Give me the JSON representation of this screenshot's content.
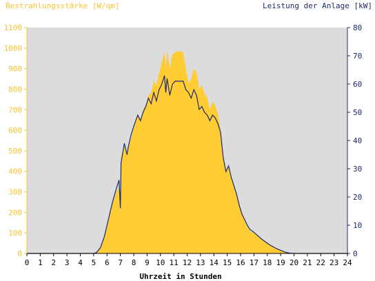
{
  "chart_data": {
    "type": "area",
    "title_left": "Bestrahlungsstärke [W/qm]",
    "title_right": "Leistung der Anlage [kW]",
    "xlabel": "Uhrzeit in Stunden",
    "x_ticks": [
      "0",
      "1",
      "2",
      "3",
      "4",
      "5",
      "6",
      "7",
      "8",
      "9",
      "10",
      "11",
      "12",
      "13",
      "14",
      "15",
      "16",
      "17",
      "18",
      "19",
      "20",
      "21",
      "22",
      "23",
      "24"
    ],
    "y_left_ticks": [
      "0",
      "100",
      "200",
      "300",
      "400",
      "500",
      "600",
      "700",
      "800",
      "900",
      "1000",
      "1100"
    ],
    "y_right_ticks": [
      "0",
      "10",
      "20",
      "30",
      "40",
      "50",
      "60",
      "70",
      "80"
    ],
    "xlim": [
      0,
      24
    ],
    "ylim_left": [
      0,
      1100
    ],
    "ylim_right": [
      0,
      80
    ],
    "grid": false,
    "colors": {
      "plot_bg": "#dcdcdc",
      "irradiance_fill": "#ffcc33",
      "power_line": "#1a2a6c",
      "left_axis_text": "#f5c431",
      "right_axis_text": "#1f2a6b"
    },
    "series": [
      {
        "name": "Bestrahlungsstärke",
        "axis": "left",
        "points": [
          [
            0,
            0
          ],
          [
            5,
            0
          ],
          [
            5.2,
            5
          ],
          [
            5.5,
            30
          ],
          [
            5.8,
            80
          ],
          [
            6.1,
            160
          ],
          [
            6.4,
            240
          ],
          [
            6.7,
            300
          ],
          [
            6.9,
            320
          ],
          [
            7.0,
            200
          ],
          [
            7.05,
            470
          ],
          [
            7.3,
            520
          ],
          [
            7.5,
            480
          ],
          [
            7.6,
            520
          ],
          [
            7.8,
            560
          ],
          [
            8.0,
            610
          ],
          [
            8.3,
            680
          ],
          [
            8.5,
            650
          ],
          [
            8.7,
            700
          ],
          [
            8.9,
            720
          ],
          [
            9.1,
            770
          ],
          [
            9.3,
            780
          ],
          [
            9.5,
            840
          ],
          [
            9.7,
            820
          ],
          [
            9.9,
            880
          ],
          [
            10.1,
            930
          ],
          [
            10.3,
            980
          ],
          [
            10.4,
            900
          ],
          [
            10.5,
            990
          ],
          [
            10.7,
            900
          ],
          [
            10.9,
            970
          ],
          [
            11.1,
            980
          ],
          [
            11.4,
            985
          ],
          [
            11.7,
            980
          ],
          [
            11.9,
            900
          ],
          [
            12.1,
            830
          ],
          [
            12.3,
            850
          ],
          [
            12.5,
            900
          ],
          [
            12.7,
            880
          ],
          [
            12.9,
            800
          ],
          [
            13.1,
            820
          ],
          [
            13.3,
            780
          ],
          [
            13.5,
            760
          ],
          [
            13.7,
            700
          ],
          [
            13.9,
            740
          ],
          [
            14.1,
            720
          ],
          [
            14.3,
            680
          ],
          [
            14.5,
            600
          ],
          [
            14.7,
            480
          ],
          [
            14.9,
            400
          ],
          [
            15.1,
            430
          ],
          [
            15.3,
            380
          ],
          [
            15.5,
            330
          ],
          [
            15.7,
            280
          ],
          [
            15.9,
            240
          ],
          [
            16.1,
            200
          ],
          [
            16.3,
            160
          ],
          [
            16.5,
            130
          ],
          [
            16.7,
            110
          ],
          [
            17.0,
            100
          ],
          [
            17.3,
            85
          ],
          [
            17.6,
            70
          ],
          [
            17.9,
            55
          ],
          [
            18.2,
            40
          ],
          [
            18.5,
            30
          ],
          [
            18.8,
            20
          ],
          [
            19.1,
            12
          ],
          [
            19.4,
            6
          ],
          [
            19.7,
            2
          ],
          [
            20,
            0
          ],
          [
            24,
            0
          ]
        ]
      },
      {
        "name": "Leistung",
        "axis": "right",
        "points": [
          [
            0,
            0
          ],
          [
            5,
            0
          ],
          [
            5.2,
            0.3
          ],
          [
            5.5,
            2
          ],
          [
            5.8,
            6
          ],
          [
            6.1,
            12
          ],
          [
            6.4,
            18
          ],
          [
            6.7,
            23
          ],
          [
            6.9,
            26
          ],
          [
            7.0,
            16
          ],
          [
            7.05,
            32
          ],
          [
            7.3,
            39
          ],
          [
            7.5,
            35
          ],
          [
            7.6,
            38
          ],
          [
            7.8,
            42
          ],
          [
            8.0,
            45
          ],
          [
            8.3,
            49
          ],
          [
            8.5,
            47
          ],
          [
            8.7,
            50
          ],
          [
            8.9,
            52
          ],
          [
            9.1,
            55
          ],
          [
            9.3,
            53
          ],
          [
            9.5,
            57
          ],
          [
            9.7,
            54
          ],
          [
            9.9,
            58
          ],
          [
            10.1,
            60
          ],
          [
            10.3,
            63
          ],
          [
            10.4,
            57
          ],
          [
            10.5,
            62
          ],
          [
            10.7,
            56
          ],
          [
            10.9,
            60
          ],
          [
            11.1,
            61
          ],
          [
            11.4,
            61
          ],
          [
            11.7,
            61
          ],
          [
            11.9,
            58
          ],
          [
            12.1,
            57
          ],
          [
            12.3,
            55
          ],
          [
            12.5,
            58
          ],
          [
            12.7,
            56
          ],
          [
            12.9,
            51
          ],
          [
            13.1,
            52
          ],
          [
            13.3,
            50
          ],
          [
            13.5,
            49
          ],
          [
            13.7,
            47
          ],
          [
            13.9,
            49
          ],
          [
            14.1,
            48
          ],
          [
            14.3,
            46
          ],
          [
            14.5,
            43
          ],
          [
            14.7,
            34
          ],
          [
            14.9,
            29
          ],
          [
            15.1,
            31
          ],
          [
            15.3,
            27
          ],
          [
            15.5,
            24
          ],
          [
            15.7,
            21
          ],
          [
            15.9,
            17
          ],
          [
            16.1,
            14
          ],
          [
            16.3,
            12
          ],
          [
            16.5,
            10
          ],
          [
            16.7,
            8.5
          ],
          [
            17.0,
            7.5
          ],
          [
            17.3,
            6.2
          ],
          [
            17.6,
            5
          ],
          [
            17.9,
            4
          ],
          [
            18.2,
            3
          ],
          [
            18.5,
            2.2
          ],
          [
            18.8,
            1.5
          ],
          [
            19.1,
            0.9
          ],
          [
            19.4,
            0.4
          ],
          [
            19.7,
            0.1
          ],
          [
            20,
            0
          ],
          [
            24,
            0
          ]
        ]
      }
    ]
  }
}
